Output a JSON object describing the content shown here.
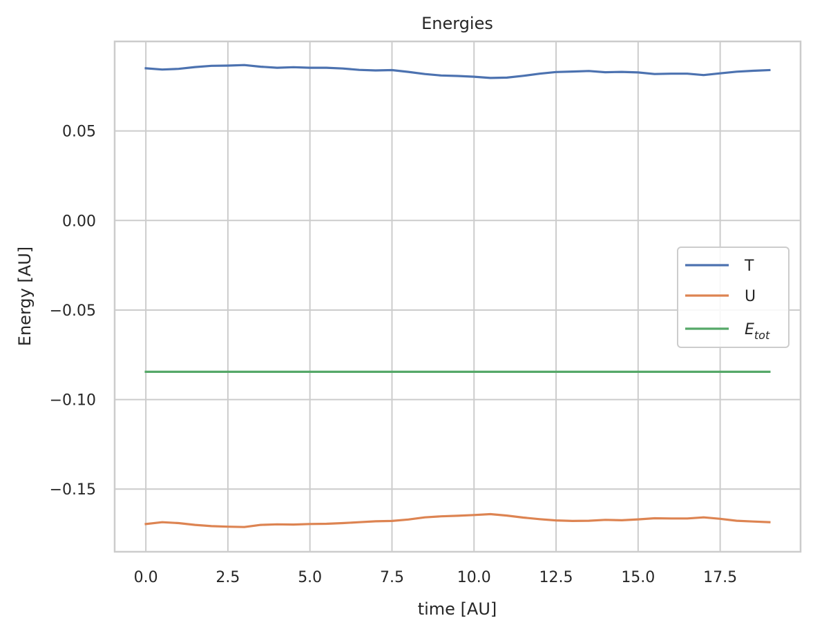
{
  "chart_data": {
    "type": "line",
    "title": "Energies",
    "xlabel": "time [AU]",
    "ylabel": "Energy [AU]",
    "xlim": [
      -0.95,
      19.95
    ],
    "ylim": [
      -0.185,
      0.1
    ],
    "xticks": [
      0.0,
      2.5,
      5.0,
      7.5,
      10.0,
      12.5,
      15.0,
      17.5
    ],
    "xtick_labels": [
      "0.0",
      "2.5",
      "5.0",
      "7.5",
      "10.0",
      "12.5",
      "15.0",
      "17.5"
    ],
    "yticks": [
      -0.15,
      -0.1,
      -0.05,
      0.0,
      0.05
    ],
    "ytick_labels": [
      "−0.15",
      "−0.10",
      "−0.05",
      "0.00",
      "0.05"
    ],
    "grid": true,
    "legend_position": "center-right",
    "x": [
      0.0,
      0.5,
      1.0,
      1.5,
      2.0,
      2.5,
      3.0,
      3.5,
      4.0,
      4.5,
      5.0,
      5.5,
      6.0,
      6.5,
      7.0,
      7.5,
      8.0,
      8.5,
      9.0,
      9.5,
      10.0,
      10.5,
      11.0,
      11.5,
      12.0,
      12.5,
      13.0,
      13.5,
      14.0,
      14.5,
      15.0,
      15.5,
      16.0,
      16.5,
      17.0,
      17.5,
      18.0,
      18.5,
      19.0
    ],
    "series": [
      {
        "name": "T",
        "color": "#4c72b0",
        "values": [
          0.085,
          0.0843,
          0.0847,
          0.0857,
          0.0864,
          0.0865,
          0.0868,
          0.0859,
          0.0853,
          0.0856,
          0.0853,
          0.0853,
          0.0849,
          0.0841,
          0.0838,
          0.084,
          0.083,
          0.0818,
          0.081,
          0.0807,
          0.0803,
          0.0796,
          0.0798,
          0.0808,
          0.082,
          0.0829,
          0.0832,
          0.0835,
          0.0828,
          0.083,
          0.0827,
          0.0818,
          0.082,
          0.082,
          0.0812,
          0.0822,
          0.0831,
          0.0836,
          0.084
        ]
      },
      {
        "name": "U",
        "color": "#dd8452",
        "values": [
          -0.1695,
          -0.1685,
          -0.169,
          -0.17,
          -0.1707,
          -0.171,
          -0.1712,
          -0.17,
          -0.1697,
          -0.1698,
          -0.1695,
          -0.1694,
          -0.169,
          -0.1685,
          -0.168,
          -0.1678,
          -0.167,
          -0.1658,
          -0.1652,
          -0.1649,
          -0.1645,
          -0.164,
          -0.1648,
          -0.1659,
          -0.1668,
          -0.1675,
          -0.1678,
          -0.1677,
          -0.1672,
          -0.1674,
          -0.1669,
          -0.1663,
          -0.1664,
          -0.1664,
          -0.1658,
          -0.1666,
          -0.1677,
          -0.1681,
          -0.1685
        ]
      },
      {
        "name": "E_tot",
        "color": "#55a868",
        "values": [
          -0.0845,
          -0.0845,
          -0.0845,
          -0.0845,
          -0.0845,
          -0.0845,
          -0.0845,
          -0.0845,
          -0.0845,
          -0.0845,
          -0.0845,
          -0.0845,
          -0.0845,
          -0.0845,
          -0.0845,
          -0.0845,
          -0.0845,
          -0.0845,
          -0.0845,
          -0.0845,
          -0.0845,
          -0.0845,
          -0.0845,
          -0.0845,
          -0.0845,
          -0.0845,
          -0.0845,
          -0.0845,
          -0.0845,
          -0.0845,
          -0.0845,
          -0.0845,
          -0.0845,
          -0.0845,
          -0.0845,
          -0.0845,
          -0.0845,
          -0.0845,
          -0.0845
        ]
      }
    ],
    "legend": [
      {
        "label": "T",
        "color": "#4c72b0"
      },
      {
        "label": "U",
        "color": "#dd8452"
      },
      {
        "label": "E",
        "sub": "tot",
        "color": "#55a868"
      }
    ]
  },
  "colors": {
    "grid": "#cccccc",
    "spine": "#cccccc",
    "text": "#262626"
  }
}
